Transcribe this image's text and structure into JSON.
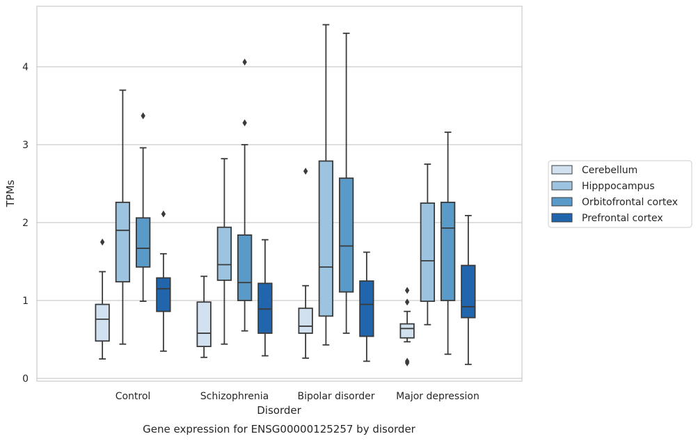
{
  "chart_data": {
    "type": "box",
    "caption": "Gene expression for ENSG00000125257 by disorder",
    "xlabel": "Disorder",
    "ylabel": "TPMs",
    "ylim": [
      -0.03,
      4.77
    ],
    "yticks": [
      0,
      1,
      2,
      3,
      4
    ],
    "grid": true,
    "legend_position": "right",
    "categories": [
      "Control",
      "Schizophrenia",
      "Bipolar disorder",
      "Major depression"
    ],
    "series": [
      {
        "name": "Cerebellum",
        "color": "#d1e1f0",
        "boxes": [
          {
            "whisker_low": 0.25,
            "q1": 0.48,
            "median": 0.76,
            "q3": 0.95,
            "whisker_high": 1.37,
            "outliers": [
              1.75
            ]
          },
          {
            "whisker_low": 0.27,
            "q1": 0.41,
            "median": 0.58,
            "q3": 0.98,
            "whisker_high": 1.31,
            "outliers": []
          },
          {
            "whisker_low": 0.26,
            "q1": 0.58,
            "median": 0.67,
            "q3": 0.9,
            "whisker_high": 1.19,
            "outliers": [
              2.66
            ]
          },
          {
            "whisker_low": 0.47,
            "q1": 0.52,
            "median": 0.64,
            "q3": 0.7,
            "whisker_high": 0.86,
            "outliers": [
              0.98,
              1.13,
              0.2,
              0.22
            ]
          }
        ]
      },
      {
        "name": "Hipppocampus",
        "color": "#9cc4e0",
        "boxes": [
          {
            "whisker_low": 0.44,
            "q1": 1.24,
            "median": 1.9,
            "q3": 2.26,
            "whisker_high": 3.7,
            "outliers": []
          },
          {
            "whisker_low": 0.44,
            "q1": 1.26,
            "median": 1.46,
            "q3": 1.94,
            "whisker_high": 2.82,
            "outliers": []
          },
          {
            "whisker_low": 0.43,
            "q1": 0.8,
            "median": 1.43,
            "q3": 2.79,
            "whisker_high": 4.54,
            "outliers": []
          },
          {
            "whisker_low": 0.69,
            "q1": 0.99,
            "median": 1.51,
            "q3": 2.25,
            "whisker_high": 2.75,
            "outliers": []
          }
        ]
      },
      {
        "name": "Orbitofrontal cortex",
        "color": "#5a9ac8",
        "boxes": [
          {
            "whisker_low": 0.99,
            "q1": 1.43,
            "median": 1.67,
            "q3": 2.06,
            "whisker_high": 2.96,
            "outliers": [
              3.37
            ]
          },
          {
            "whisker_low": 0.61,
            "q1": 1.0,
            "median": 1.23,
            "q3": 1.84,
            "whisker_high": 3.0,
            "outliers": [
              3.28,
              4.06
            ]
          },
          {
            "whisker_low": 0.58,
            "q1": 1.11,
            "median": 1.7,
            "q3": 2.57,
            "whisker_high": 4.43,
            "outliers": []
          },
          {
            "whisker_low": 0.31,
            "q1": 1.0,
            "median": 1.93,
            "q3": 2.26,
            "whisker_high": 3.16,
            "outliers": []
          }
        ]
      },
      {
        "name": "Prefrontal cortex",
        "color": "#2166ac",
        "boxes": [
          {
            "whisker_low": 0.35,
            "q1": 0.86,
            "median": 1.15,
            "q3": 1.29,
            "whisker_high": 1.6,
            "outliers": [
              2.11
            ]
          },
          {
            "whisker_low": 0.29,
            "q1": 0.58,
            "median": 0.89,
            "q3": 1.22,
            "whisker_high": 1.78,
            "outliers": []
          },
          {
            "whisker_low": 0.22,
            "q1": 0.54,
            "median": 0.95,
            "q3": 1.25,
            "whisker_high": 1.62,
            "outliers": []
          },
          {
            "whisker_low": 0.18,
            "q1": 0.78,
            "median": 0.92,
            "q3": 1.45,
            "whisker_high": 2.09,
            "outliers": []
          }
        ]
      }
    ]
  }
}
